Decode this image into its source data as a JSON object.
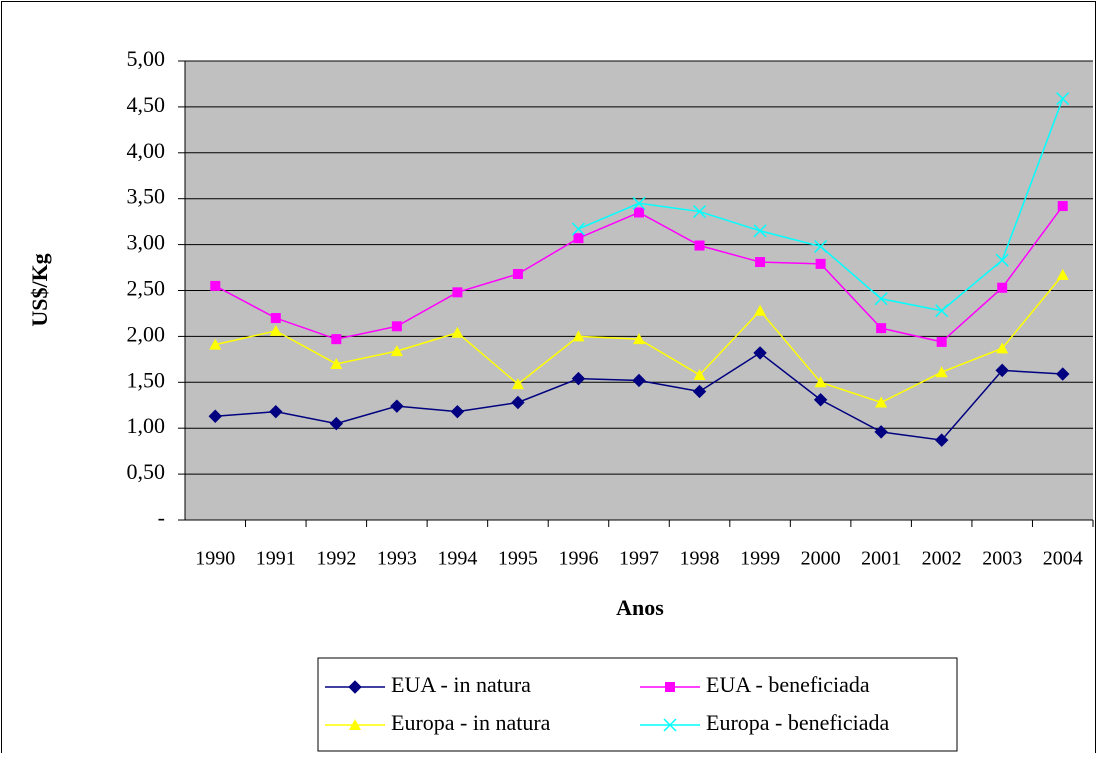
{
  "chart_data": {
    "type": "line",
    "x_label": "Anos",
    "y_label": "US$/Kg",
    "categories": [
      "1990",
      "1991",
      "1992",
      "1993",
      "1994",
      "1995",
      "1996",
      "1997",
      "1998",
      "1999",
      "2000",
      "2001",
      "2002",
      "2003",
      "2004"
    ],
    "series": [
      {
        "name": "EUA - in natura",
        "color": "#000080",
        "marker": "diamond",
        "values": [
          1.13,
          1.18,
          1.05,
          1.24,
          1.18,
          1.28,
          1.54,
          1.52,
          1.4,
          1.82,
          1.31,
          0.96,
          0.87,
          1.63,
          1.59
        ]
      },
      {
        "name": "EUA - beneficiada",
        "color": "#ff00ff",
        "marker": "square",
        "values": [
          2.55,
          2.2,
          1.97,
          2.11,
          2.48,
          2.68,
          3.07,
          3.35,
          2.99,
          2.81,
          2.79,
          2.09,
          1.94,
          2.53,
          3.42
        ]
      },
      {
        "name": "Europa - in natura",
        "color": "#ffff00",
        "marker": "triangle",
        "values": [
          1.91,
          2.06,
          1.7,
          1.84,
          2.04,
          1.48,
          2.0,
          1.97,
          1.58,
          2.28,
          1.5,
          1.28,
          1.61,
          1.87,
          2.67
        ]
      },
      {
        "name": "Europa - beneficiada",
        "color": "#00ffff",
        "marker": "x",
        "values": [
          null,
          null,
          null,
          null,
          null,
          null,
          3.17,
          3.45,
          3.36,
          3.15,
          2.98,
          2.41,
          2.28,
          2.83,
          4.59
        ]
      }
    ],
    "ylim": [
      0,
      5
    ],
    "yticks": [
      {
        "value": 0,
        "label": "-"
      },
      {
        "value": 0.5,
        "label": "0,50"
      },
      {
        "value": 1,
        "label": "1,00"
      },
      {
        "value": 1.5,
        "label": "1,50"
      },
      {
        "value": 2,
        "label": "2,00"
      },
      {
        "value": 2.5,
        "label": "2,50"
      },
      {
        "value": 3,
        "label": "3,00"
      },
      {
        "value": 3.5,
        "label": "3,50"
      },
      {
        "value": 4,
        "label": "4,00"
      },
      {
        "value": 4.5,
        "label": "4,50"
      },
      {
        "value": 5,
        "label": "5,00"
      }
    ],
    "grid": true,
    "legend": "bottom"
  }
}
